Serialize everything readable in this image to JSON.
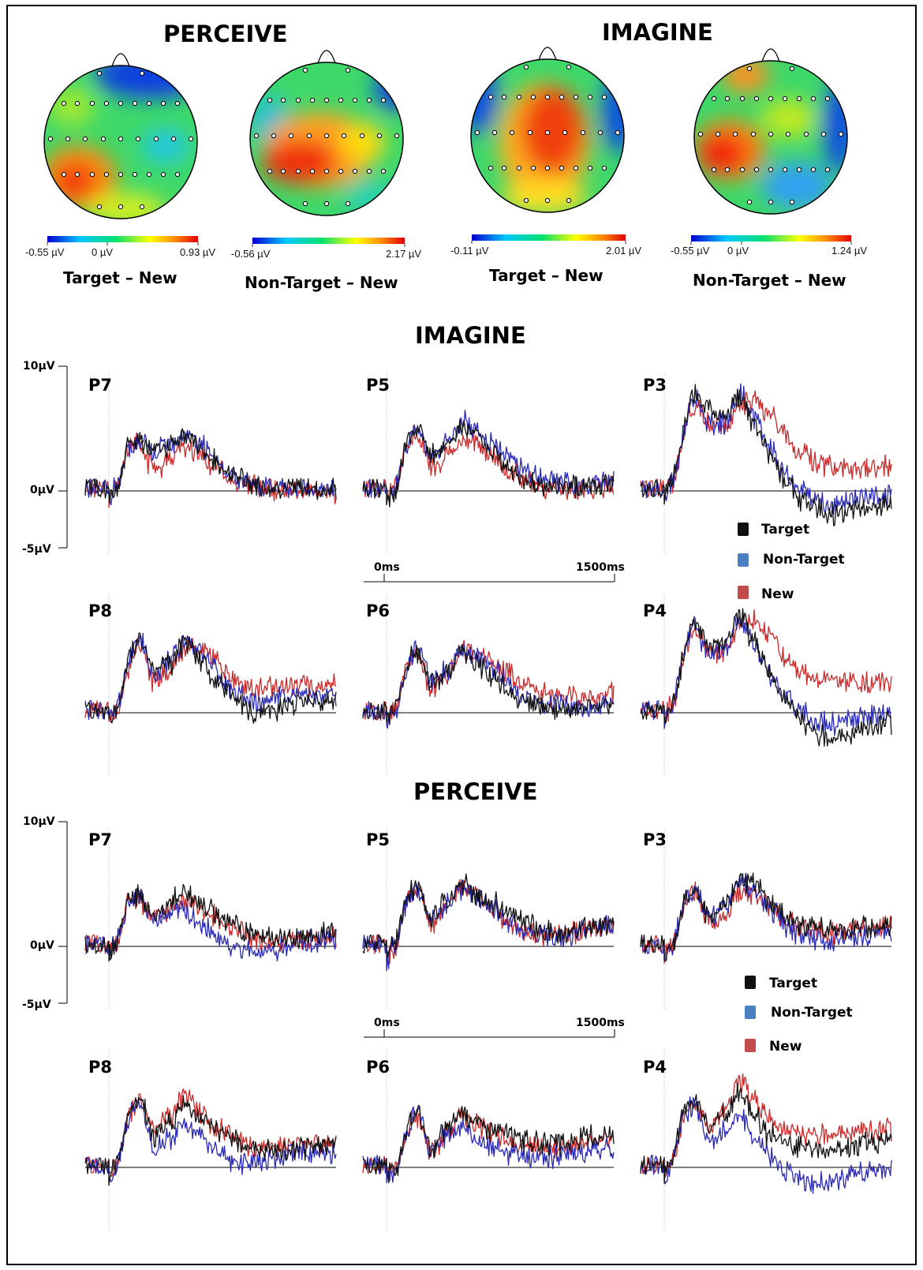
{
  "figure": {
    "section_headings": {
      "perceive_top": "PERCEIVE",
      "imagine_top": "IMAGINE",
      "imagine_erp": "IMAGINE",
      "perceive_erp": "PERCEIVE"
    },
    "topomaps": [
      {
        "title": "Target – New",
        "cb_min": "-0.55 µV",
        "cb_mid": "0 µV",
        "cb_max": "0.93 µV"
      },
      {
        "title": "Non-Target – New",
        "cb_min": "-0.56 µV",
        "cb_mid": "",
        "cb_max": "2.17 µV"
      },
      {
        "title": "Target – New",
        "cb_min": "-0.11 µV",
        "cb_mid": "",
        "cb_max": "2.01 µV"
      },
      {
        "title": "Non-Target – New",
        "cb_min": "-0.55 µV",
        "cb_mid": "0 µV",
        "cb_max": "1.24 µV"
      }
    ],
    "y_axis_labels": {
      "top": "10µV",
      "zero": "0µV",
      "bottom": "-5µV"
    },
    "time_axis_labels": {
      "start": "0ms",
      "end": "1500ms"
    },
    "legend": [
      {
        "label": "Target",
        "color": "#111111"
      },
      {
        "label": "Non-Target",
        "color": "#4a7fc1"
      },
      {
        "label": "New",
        "color": "#c24b4b"
      }
    ],
    "colors": {
      "target": "#111111",
      "nontarget": "#2a2ab8",
      "new": "#cc2a2a"
    }
  },
  "chart_data": [
    {
      "type": "line",
      "condition": "IMAGINE",
      "x_unit": "ms",
      "x": [
        0,
        100,
        200,
        300,
        400,
        500,
        600,
        700,
        800,
        900,
        1000,
        1100,
        1200,
        1300,
        1400,
        1500
      ],
      "ylim": [
        -5,
        10
      ],
      "ylabel": "µV",
      "panels": [
        {
          "electrode": "P7",
          "series": [
            {
              "name": "Target",
              "values": [
                -0.8,
                3.4,
                4.2,
                3.1,
                3.6,
                4.4,
                3.4,
                2.4,
                1.5,
                0.8,
                0.5,
                0.3,
                0.2,
                0.3,
                0.1,
                0.1
              ]
            },
            {
              "name": "Non-Target",
              "values": [
                -0.8,
                3.4,
                4.0,
                3.1,
                3.8,
                4.8,
                3.9,
                2.4,
                1.3,
                0.7,
                0.4,
                0.3,
                0.2,
                0.3,
                0.1,
                0.2
              ]
            },
            {
              "name": "New",
              "values": [
                -0.6,
                3.4,
                3.8,
                1.5,
                2.7,
                3.6,
                2.9,
                2.0,
                1.1,
                0.6,
                0.2,
                0.1,
                0.0,
                0.0,
                -0.2,
                -0.3
              ]
            }
          ]
        },
        {
          "electrode": "P5",
          "series": [
            {
              "name": "Target",
              "values": [
                -0.6,
                3.2,
                5.0,
                2.9,
                3.8,
                5.3,
                4.5,
                3.2,
                2.0,
                1.0,
                0.5,
                0.3,
                0.3,
                0.3,
                0.4,
                0.6
              ]
            },
            {
              "name": "Non-Target",
              "values": [
                -1.0,
                3.2,
                5.1,
                2.9,
                3.9,
                5.6,
                5.0,
                3.9,
                2.8,
                1.9,
                1.1,
                0.7,
                0.6,
                0.5,
                0.6,
                0.8
              ]
            },
            {
              "name": "New",
              "values": [
                -0.5,
                3.0,
                4.7,
                1.8,
                2.7,
                4.1,
                3.8,
                2.7,
                1.7,
                0.9,
                0.4,
                0.2,
                0.1,
                0.2,
                0.3,
                0.5
              ]
            }
          ]
        },
        {
          "electrode": "P3",
          "series": [
            {
              "name": "Target",
              "values": [
                -0.3,
                4.3,
                7.8,
                6.6,
                6.1,
                7.8,
                5.3,
                2.9,
                0.8,
                -0.7,
                -1.6,
                -2.0,
                -1.8,
                -1.6,
                -1.3,
                -1.2
              ]
            },
            {
              "name": "Non-Target",
              "values": [
                -0.4,
                4.1,
                7.6,
                5.4,
                5.5,
                7.9,
                5.8,
                3.3,
                1.3,
                0.1,
                -0.8,
                -1.1,
                -0.9,
                -0.6,
                -0.5,
                -0.2
              ]
            },
            {
              "name": "New",
              "values": [
                -0.2,
                3.9,
                7.2,
                5.3,
                5.0,
                7.1,
                7.4,
                6.3,
                4.4,
                3.2,
                2.4,
                2.0,
                1.8,
                1.6,
                1.8,
                2.0
              ]
            }
          ]
        },
        {
          "electrode": "P8",
          "series": [
            {
              "name": "Target",
              "values": [
                -0.8,
                3.7,
                5.9,
                3.1,
                4.0,
                5.7,
                4.4,
                2.9,
                1.4,
                0.4,
                0.1,
                0.3,
                0.7,
                1.0,
                0.9,
                1.0
              ]
            },
            {
              "name": "Non-Target",
              "values": [
                -0.8,
                3.8,
                6.0,
                3.2,
                4.3,
                5.9,
                4.9,
                3.5,
                2.1,
                1.2,
                0.9,
                1.1,
                1.4,
                1.6,
                1.4,
                1.4
              ]
            },
            {
              "name": "New",
              "values": [
                -0.6,
                3.4,
                5.2,
                2.6,
                3.4,
                5.3,
                5.3,
                4.5,
                3.0,
                2.1,
                1.9,
                2.0,
                2.1,
                2.2,
                2.2,
                2.4
              ]
            }
          ]
        },
        {
          "electrode": "P6",
          "series": [
            {
              "name": "Target",
              "values": [
                -0.8,
                3.1,
                5.1,
                2.3,
                3.3,
                4.8,
                3.9,
                2.8,
                1.7,
                0.9,
                0.4,
                0.2,
                0.2,
                0.3,
                0.4,
                0.5
              ]
            },
            {
              "name": "Non-Target",
              "values": [
                -0.8,
                3.2,
                5.3,
                2.6,
                3.5,
                4.9,
                4.4,
                3.6,
                2.5,
                1.4,
                0.8,
                0.6,
                0.4,
                0.4,
                0.5,
                0.6
              ]
            },
            {
              "name": "New",
              "values": [
                -0.6,
                3.0,
                4.8,
                2.0,
                3.3,
                5.0,
                4.9,
                4.1,
                3.2,
                2.3,
                1.7,
                1.4,
                1.3,
                1.3,
                1.4,
                1.5
              ]
            }
          ]
        },
        {
          "electrode": "P4",
          "series": [
            {
              "name": "Target",
              "values": [
                -0.7,
                4.2,
                7.3,
                5.4,
                5.8,
                7.8,
                5.7,
                3.1,
                1.1,
                -0.6,
                -1.6,
                -2.0,
                -1.8,
                -1.4,
                -1.0,
                -0.8
              ]
            },
            {
              "name": "Non-Target",
              "values": [
                -0.8,
                4.1,
                7.1,
                4.6,
                5.3,
                7.5,
                5.4,
                2.9,
                1.4,
                0.1,
                -0.8,
                -0.9,
                -0.7,
                -0.4,
                -0.2,
                0.0
              ]
            },
            {
              "name": "New",
              "values": [
                -0.5,
                3.9,
                6.8,
                5.1,
                4.9,
                7.3,
                7.5,
                6.3,
                4.5,
                3.4,
                2.9,
                2.6,
                2.5,
                2.4,
                2.5,
                2.7
              ]
            }
          ]
        }
      ]
    },
    {
      "type": "line",
      "condition": "PERCEIVE",
      "x_unit": "ms",
      "x": [
        0,
        100,
        200,
        300,
        400,
        500,
        600,
        700,
        800,
        900,
        1000,
        1100,
        1200,
        1300,
        1400,
        1500
      ],
      "ylim": [
        -5,
        10
      ],
      "ylabel": "µV",
      "panels": [
        {
          "electrode": "P7",
          "series": [
            {
              "name": "Target",
              "values": [
                -0.8,
                3.6,
                4.1,
                2.6,
                3.5,
                4.4,
                3.6,
                2.7,
                1.9,
                1.3,
                0.9,
                0.7,
                0.7,
                0.8,
                1.0,
                1.2
              ]
            },
            {
              "name": "Non-Target",
              "values": [
                -0.8,
                3.6,
                4.0,
                2.4,
                2.6,
                3.0,
                1.8,
                1.0,
                0.2,
                -0.4,
                -0.5,
                -0.2,
                0.1,
                0.4,
                0.5,
                0.6
              ]
            },
            {
              "name": "New",
              "values": [
                -0.6,
                3.4,
                3.8,
                2.2,
                2.9,
                3.6,
                3.0,
                2.4,
                1.6,
                1.0,
                0.6,
                0.5,
                0.4,
                0.5,
                0.6,
                0.7
              ]
            }
          ]
        },
        {
          "electrode": "P5",
          "series": [
            {
              "name": "Target",
              "values": [
                -0.9,
                3.4,
                4.9,
                2.4,
                3.7,
                5.1,
                4.2,
                3.6,
                2.8,
                2.1,
                1.4,
                1.2,
                1.2,
                1.5,
                1.8,
                2.0
              ]
            },
            {
              "name": "Non-Target",
              "values": [
                -1.0,
                3.2,
                4.7,
                2.3,
                3.4,
                4.6,
                4.0,
                3.1,
                2.1,
                1.4,
                0.9,
                0.8,
                0.9,
                1.2,
                1.5,
                1.7
              ]
            },
            {
              "name": "New",
              "values": [
                -0.7,
                3.1,
                4.6,
                1.8,
                3.5,
                4.9,
                4.2,
                3.1,
                2.0,
                1.3,
                0.9,
                0.9,
                1.0,
                1.2,
                1.5,
                1.7
              ]
            }
          ]
        },
        {
          "electrode": "P3",
          "series": [
            {
              "name": "Target",
              "values": [
                -0.8,
                3.2,
                4.6,
                2.5,
                3.5,
                5.6,
                4.9,
                3.5,
                2.4,
                1.8,
                1.5,
                1.4,
                1.4,
                1.5,
                1.6,
                1.7
              ]
            },
            {
              "name": "Non-Target",
              "values": [
                -0.8,
                3.3,
                4.7,
                2.2,
                3.3,
                5.2,
                4.3,
                3.0,
                1.7,
                0.9,
                0.6,
                0.5,
                0.7,
                0.9,
                1.1,
                1.3
              ]
            },
            {
              "name": "New",
              "values": [
                -0.6,
                3.0,
                4.4,
                1.8,
                2.4,
                4.6,
                4.2,
                3.2,
                2.1,
                1.5,
                1.1,
                1.0,
                1.1,
                1.3,
                1.5,
                1.7
              ]
            }
          ]
        },
        {
          "electrode": "P8",
          "series": [
            {
              "name": "Target",
              "values": [
                -0.9,
                3.7,
                5.6,
                2.4,
                3.6,
                5.1,
                4.0,
                3.2,
                2.5,
                1.9,
                1.5,
                1.3,
                1.4,
                1.6,
                1.8,
                2.2
              ]
            },
            {
              "name": "Non-Target",
              "values": [
                -1.1,
                3.5,
                5.3,
                1.4,
                2.4,
                3.6,
                2.7,
                1.5,
                0.6,
                0.2,
                0.3,
                0.8,
                1.2,
                1.4,
                1.2,
                1.0
              ]
            },
            {
              "name": "New",
              "values": [
                -0.7,
                3.5,
                5.4,
                2.8,
                4.1,
                5.8,
                4.6,
                3.4,
                2.5,
                1.9,
                1.7,
                1.7,
                1.8,
                1.9,
                1.9,
                1.9
              ]
            }
          ]
        },
        {
          "electrode": "P6",
          "series": [
            {
              "name": "Target",
              "values": [
                -0.8,
                2.3,
                4.4,
                1.4,
                3.3,
                4.6,
                3.7,
                3.1,
                2.7,
                2.3,
                2.0,
                1.9,
                2.0,
                2.3,
                2.6,
                2.9
              ]
            },
            {
              "name": "Non-Target",
              "values": [
                -0.9,
                2.4,
                4.5,
                1.3,
                2.6,
                3.0,
                2.1,
                1.6,
                1.1,
                0.9,
                0.8,
                0.9,
                1.1,
                1.3,
                1.5,
                1.6
              ]
            },
            {
              "name": "New",
              "values": [
                -0.8,
                2.2,
                4.3,
                1.1,
                2.9,
                4.1,
                3.4,
                2.7,
                2.1,
                1.7,
                1.5,
                1.5,
                1.7,
                1.9,
                2.1,
                2.2
              ]
            }
          ]
        },
        {
          "electrode": "P4",
          "series": [
            {
              "name": "Target",
              "values": [
                -0.8,
                4.3,
                5.4,
                3.4,
                4.4,
                6.0,
                3.9,
                2.6,
                2.2,
                1.8,
                1.4,
                1.3,
                1.5,
                1.8,
                2.1,
                2.4
              ]
            },
            {
              "name": "Non-Target",
              "values": [
                -1.0,
                4.1,
                5.1,
                2.2,
                3.0,
                4.3,
                2.4,
                1.1,
                -0.2,
                -1.2,
                -1.4,
                -1.2,
                -0.8,
                -0.5,
                -0.2,
                0.0
              ]
            },
            {
              "name": "New",
              "values": [
                -0.6,
                4.0,
                5.2,
                3.2,
                4.8,
                6.9,
                5.4,
                3.9,
                3.0,
                2.7,
                2.7,
                2.8,
                2.9,
                3.0,
                3.0,
                3.1
              ]
            }
          ]
        }
      ]
    }
  ]
}
